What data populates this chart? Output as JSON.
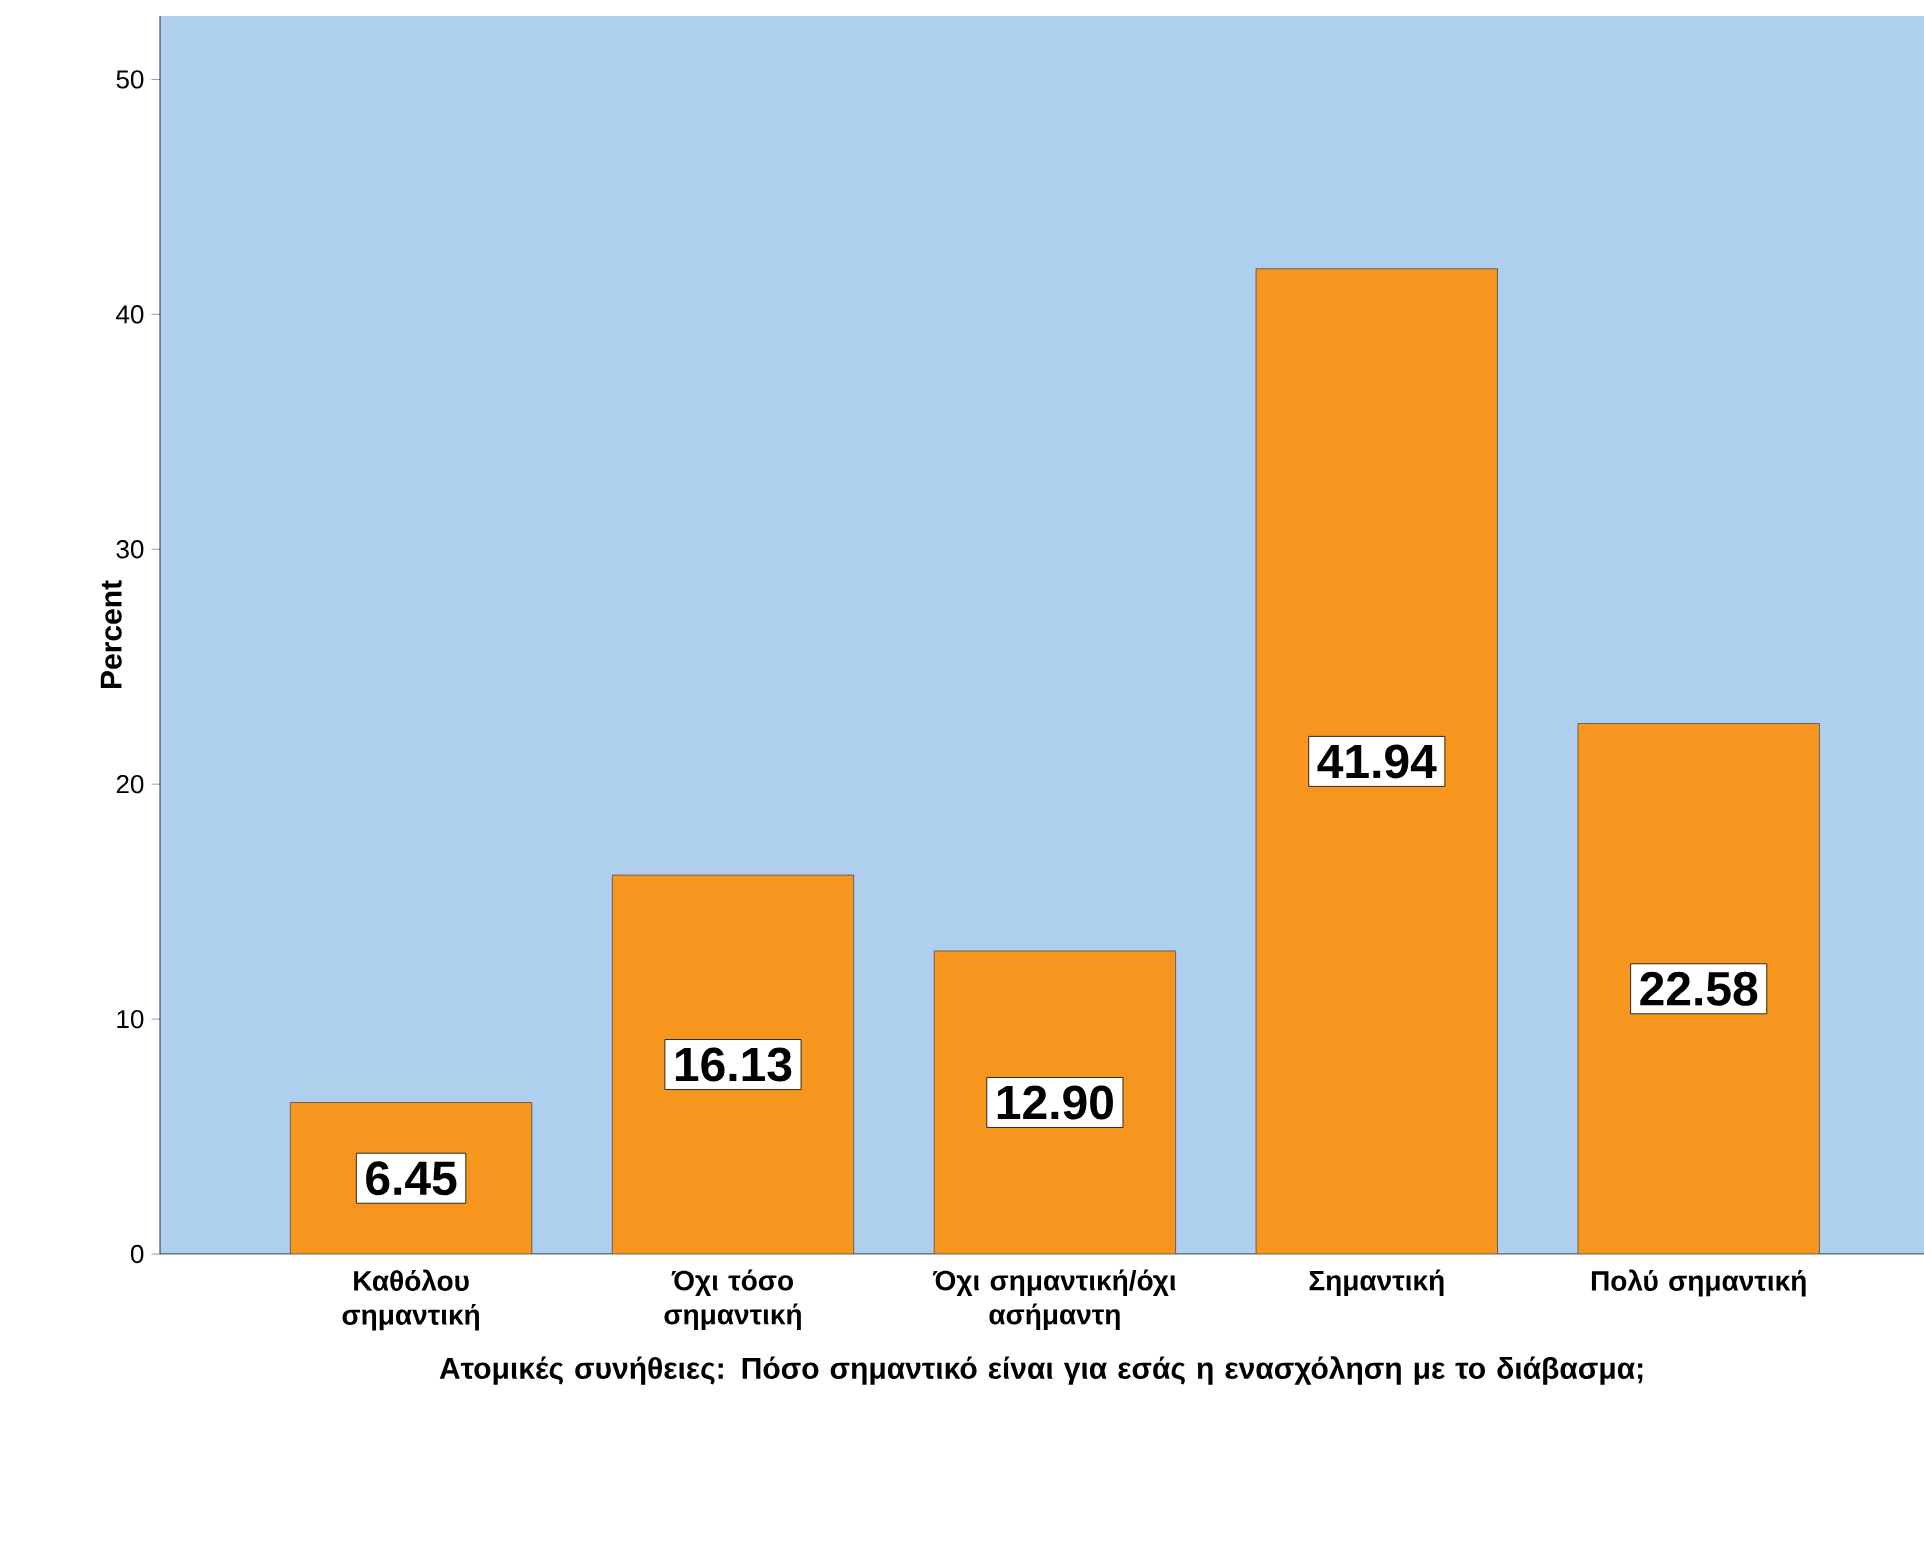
{
  "chart_data": {
    "type": "bar",
    "xlabel": "Ατομικές συνήθειες: Πόσο σημαντικό είναι για εσάς η ενασχόληση με το διάβασμα;",
    "ylabel": "Percent",
    "categories": [
      "Καθόλου σημαντική",
      "Όχι τόσο σημαντική",
      "Όχι σημαντική/όχι ασήμαντη",
      "Σημαντική",
      "Πολύ σημαντική"
    ],
    "values": [
      6.45,
      16.13,
      12.9,
      41.94,
      22.58
    ],
    "value_labels": [
      "6.45",
      "16.13",
      "12.90",
      "41.94",
      "22.58"
    ],
    "color": "#f7961e",
    "ylim": [
      0,
      52.7
    ],
    "yticks": [
      0,
      10,
      20,
      30,
      40,
      50
    ],
    "grid": false
  }
}
